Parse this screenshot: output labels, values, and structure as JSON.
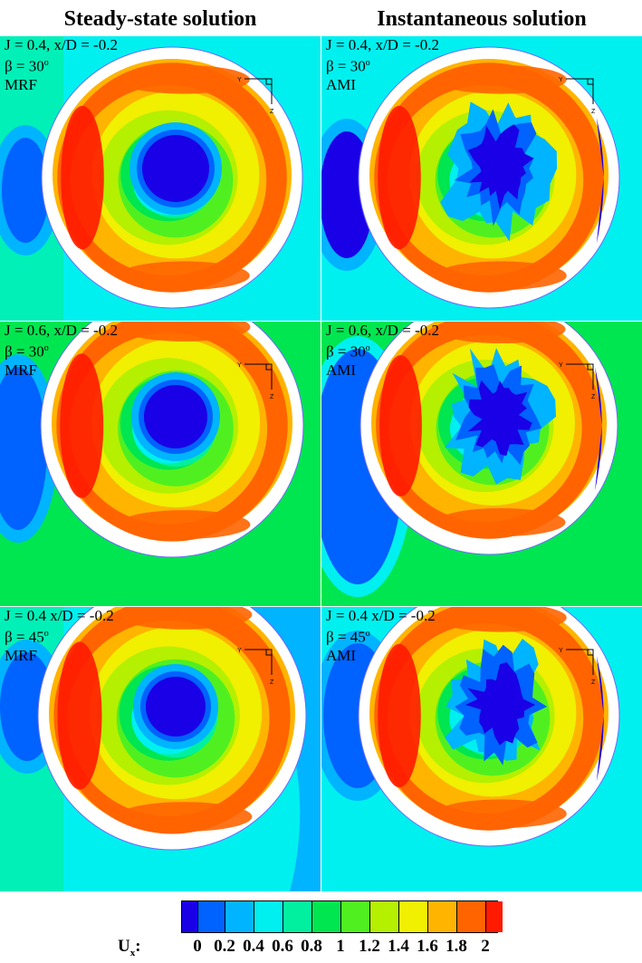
{
  "titles": {
    "left": "Steady-state solution",
    "right": "Instantaneous solution"
  },
  "panels": [
    {
      "line1": "J = 0.4, x/D = -0.2",
      "beta_prefix": "β = 30",
      "beta_sup": "o",
      "method": "MRF"
    },
    {
      "line1": "J = 0.4, x/D = -0.2",
      "beta_prefix": "β = 30",
      "beta_sup": "o",
      "method": "AMI"
    },
    {
      "line1": "J = 0.6, x/D = -0.2",
      "beta_prefix": "β = 30",
      "beta_sup": "o",
      "method": "MRF"
    },
    {
      "line1": "J = 0.6, x/D = -0.2",
      "beta_prefix": "β = 30",
      "beta_sup": "o",
      "method": "AMI"
    },
    {
      "line1": "J = 0.4 x/D = -0.2",
      "beta_prefix": "β = 45",
      "beta_sup": "o",
      "method": "MRF"
    },
    {
      "line1": "J = 0.4 x/D = -0.2",
      "beta_prefix": "β = 45",
      "beta_sup": "o",
      "method": "AMI"
    }
  ],
  "axis_labels": {
    "y": "Y",
    "z": "Z"
  },
  "legend": {
    "symbol": "U",
    "subscript": "x",
    "colon": ":",
    "ticks": [
      "0",
      "0.2",
      "0.4",
      "0.6",
      "0.8",
      "1",
      "1.2",
      "1.4",
      "1.6",
      "1.8",
      "2"
    ],
    "colors": [
      "#1a00e6",
      "#0062ff",
      "#00b4ff",
      "#00f0f0",
      "#00f0a0",
      "#00e650",
      "#50f020",
      "#b4f000",
      "#f0f000",
      "#ffb400",
      "#ff6400",
      "#ff1a00"
    ]
  },
  "colors": {
    "c0": "#1a00e6",
    "c02": "#0062ff",
    "c04": "#00b4ff",
    "c06": "#00f0f0",
    "c08": "#00f0a0",
    "c1": "#00e650",
    "c12": "#50f020",
    "c14": "#b4f000",
    "c16": "#f0f000",
    "c18": "#ffb400",
    "c2": "#ff6400",
    "cmax": "#ff1a00"
  }
}
